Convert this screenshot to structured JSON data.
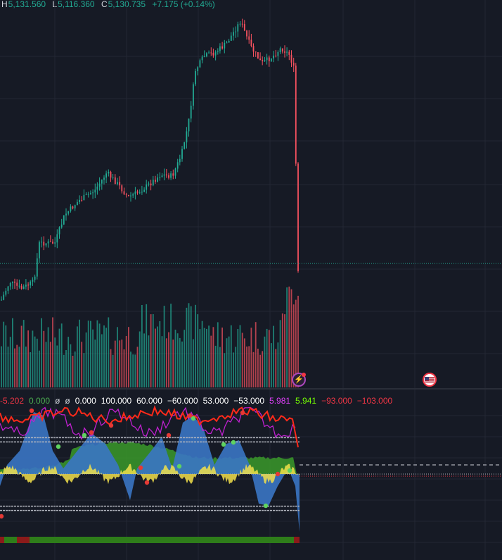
{
  "legend": {
    "high_label": "H",
    "high_value": "5,131.560",
    "low_label": "L",
    "low_value": "5,116.360",
    "close_label": "C",
    "close_value": "5,130.735",
    "change": "+7.175 (+0.14%)"
  },
  "indicator_values": [
    {
      "text": "-5.202",
      "color": "#f23645"
    },
    {
      "text": "0.000",
      "color": "#4caf50"
    },
    {
      "text": "ø",
      "color": "#d1d4dc"
    },
    {
      "text": "ø",
      "color": "#d1d4dc"
    },
    {
      "text": "0.000",
      "color": "#ffffff"
    },
    {
      "text": "100.000",
      "color": "#ffffff"
    },
    {
      "text": "60.000",
      "color": "#ffffff"
    },
    {
      "text": "−60.000",
      "color": "#ffffff"
    },
    {
      "text": "53.000",
      "color": "#ffffff"
    },
    {
      "text": "−53.000",
      "color": "#ffffff"
    },
    {
      "text": "5.981",
      "color": "#e040fb"
    },
    {
      "text": "5.941",
      "color": "#76ff03"
    },
    {
      "text": "−93.000",
      "color": "#f23645"
    },
    {
      "text": "−103.000",
      "color": "#f23645"
    }
  ],
  "icons": {
    "earnings": "lightning-icon",
    "economic_event": "us-flag-icon"
  },
  "chart_data": {
    "type": "candlestick",
    "price_range": [
      5116.36,
      5131.56
    ],
    "last_close": 5130.735,
    "change": 7.175,
    "change_percent": 0.14,
    "bar_count": 134,
    "colors": {
      "up": "#22ab94",
      "down": "#f7525f",
      "grid": "#232733",
      "background": "#161a25"
    },
    "indicator": {
      "levels": [
        60,
        53,
        -53,
        -60
      ],
      "zero": 0,
      "colors": {
        "wave": "#3a75c4",
        "momentum": "#3a9a2a",
        "histogram": "#f2e04a",
        "line_red": "#ff2a1a",
        "line_magenta": "#c020d0"
      }
    }
  }
}
